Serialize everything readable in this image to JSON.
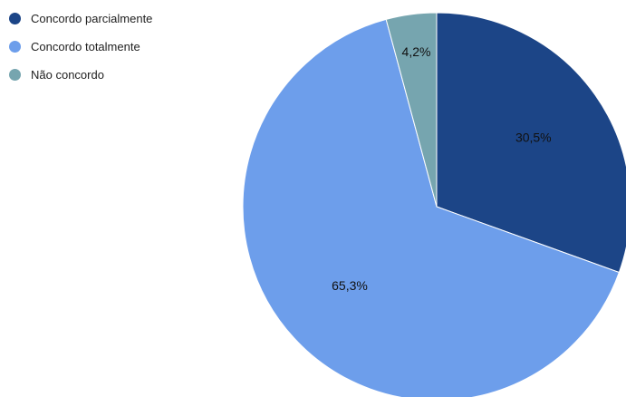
{
  "chart_data": {
    "type": "pie",
    "title": "",
    "categories": [
      "Concordo parcialmente",
      "Concordo totalmente",
      "Não concordo"
    ],
    "values": [
      30.5,
      65.3,
      4.2
    ],
    "data_labels": [
      "30,5%",
      "65,3%",
      "4,2%"
    ],
    "colors": [
      "#1c4587",
      "#6d9eeb",
      "#76a5af"
    ],
    "legend_position": "top-left",
    "start_angle_deg": 0,
    "direction": "clockwise"
  },
  "legend": {
    "items": [
      {
        "label": "Concordo parcialmente",
        "color": "#1c4587"
      },
      {
        "label": "Concordo totalmente",
        "color": "#6d9eeb"
      },
      {
        "label": "Não concordo",
        "color": "#76a5af"
      }
    ]
  }
}
